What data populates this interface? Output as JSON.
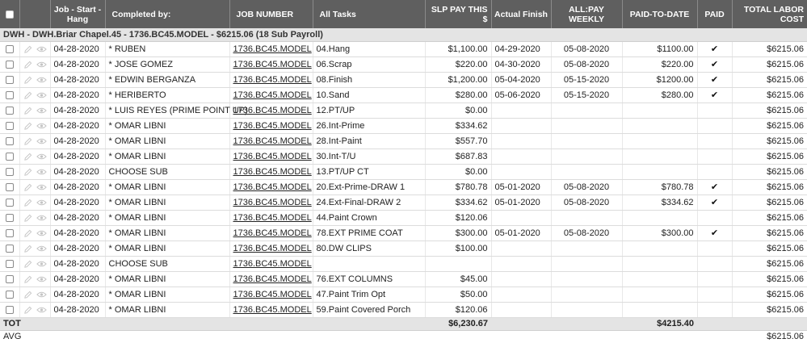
{
  "headers": {
    "job_start": "Job - Start - Hang",
    "completed_by": "Completed by:",
    "job_number": "JOB NUMBER",
    "all_tasks": "All Tasks",
    "slp_pay": "SLP PAY THIS $",
    "actual_finish": "Actual Finish",
    "all_pay_weekly": "ALL:PAY WEEKLY",
    "paid_to_date": "PAID-TO-DATE",
    "paid": "PAID",
    "total_labor_cost": "TOTAL LABOR COST"
  },
  "group": {
    "label": "DWH - DWH.Briar Chapel.45 - 1736.BC45.MODEL - $6215.06  (18 Sub Payroll)"
  },
  "rows": [
    {
      "date": "04-28-2020",
      "sub": "* RUBEN",
      "job": "1736.BC45.MODEL",
      "task": "04.Hang",
      "pay": "$1,100.00",
      "finish": "04-29-2020",
      "weekly": "05-08-2020",
      "ptd": "$1100.00",
      "paid": "✔",
      "total": "$6215.06"
    },
    {
      "date": "04-28-2020",
      "sub": "* JOSE GOMEZ",
      "job": "1736.BC45.MODEL",
      "task": "06.Scrap",
      "pay": "$220.00",
      "finish": "04-30-2020",
      "weekly": "05-08-2020",
      "ptd": "$220.00",
      "paid": "✔",
      "total": "$6215.06"
    },
    {
      "date": "04-28-2020",
      "sub": "* EDWIN BERGANZA",
      "job": "1736.BC45.MODEL",
      "task": "08.Finish",
      "pay": "$1,200.00",
      "finish": "05-04-2020",
      "weekly": "05-15-2020",
      "ptd": "$1200.00",
      "paid": "✔",
      "total": "$6215.06"
    },
    {
      "date": "04-28-2020",
      "sub": "* HERIBERTO",
      "job": "1736.BC45.MODEL",
      "task": "10.Sand",
      "pay": "$280.00",
      "finish": "05-06-2020",
      "weekly": "05-15-2020",
      "ptd": "$280.00",
      "paid": "✔",
      "total": "$6215.06"
    },
    {
      "date": "04-28-2020",
      "sub": "* LUIS REYES (PRIME POINT UP)",
      "job": "1736.BC45.MODEL",
      "task": "12.PT/UP",
      "pay": "$0.00",
      "finish": "",
      "weekly": "",
      "ptd": "",
      "paid": "",
      "total": "$6215.06"
    },
    {
      "date": "04-28-2020",
      "sub": "* OMAR LIBNI",
      "job": "1736.BC45.MODEL",
      "task": "26.Int-Prime",
      "pay": "$334.62",
      "finish": "",
      "weekly": "",
      "ptd": "",
      "paid": "",
      "total": "$6215.06"
    },
    {
      "date": "04-28-2020",
      "sub": "* OMAR LIBNI",
      "job": "1736.BC45.MODEL",
      "task": "28.Int-Paint",
      "pay": "$557.70",
      "finish": "",
      "weekly": "",
      "ptd": "",
      "paid": "",
      "total": "$6215.06"
    },
    {
      "date": "04-28-2020",
      "sub": "* OMAR LIBNI",
      "job": "1736.BC45.MODEL",
      "task": "30.Int-T/U",
      "pay": "$687.83",
      "finish": "",
      "weekly": "",
      "ptd": "",
      "paid": "",
      "total": "$6215.06"
    },
    {
      "date": "04-28-2020",
      "sub": "CHOOSE SUB",
      "job": "1736.BC45.MODEL",
      "task": "13.PT/UP CT",
      "pay": "$0.00",
      "finish": "",
      "weekly": "",
      "ptd": "",
      "paid": "",
      "total": "$6215.06"
    },
    {
      "date": "04-28-2020",
      "sub": "* OMAR LIBNI",
      "job": "1736.BC45.MODEL",
      "task": "20.Ext-Prime-DRAW 1",
      "pay": "$780.78",
      "finish": "05-01-2020",
      "weekly": "05-08-2020",
      "ptd": "$780.78",
      "paid": "✔",
      "total": "$6215.06"
    },
    {
      "date": "04-28-2020",
      "sub": "* OMAR LIBNI",
      "job": "1736.BC45.MODEL",
      "task": "24.Ext-Final-DRAW 2",
      "pay": "$334.62",
      "finish": "05-01-2020",
      "weekly": "05-08-2020",
      "ptd": "$334.62",
      "paid": "✔",
      "total": "$6215.06"
    },
    {
      "date": "04-28-2020",
      "sub": "* OMAR LIBNI",
      "job": "1736.BC45.MODEL",
      "task": "44.Paint Crown",
      "pay": "$120.06",
      "finish": "",
      "weekly": "",
      "ptd": "",
      "paid": "",
      "total": "$6215.06"
    },
    {
      "date": "04-28-2020",
      "sub": "* OMAR LIBNI",
      "job": "1736.BC45.MODEL",
      "task": "78.EXT PRIME COAT",
      "pay": "$300.00",
      "finish": "05-01-2020",
      "weekly": "05-08-2020",
      "ptd": "$300.00",
      "paid": "✔",
      "total": "$6215.06"
    },
    {
      "date": "04-28-2020",
      "sub": "* OMAR LIBNI",
      "job": "1736.BC45.MODEL",
      "task": "80.DW CLIPS",
      "pay": "$100.00",
      "finish": "",
      "weekly": "",
      "ptd": "",
      "paid": "",
      "total": "$6215.06"
    },
    {
      "date": "04-28-2020",
      "sub": "CHOOSE SUB",
      "job": "1736.BC45.MODEL",
      "task": "",
      "pay": "",
      "finish": "",
      "weekly": "",
      "ptd": "",
      "paid": "",
      "total": "$6215.06"
    },
    {
      "date": "04-28-2020",
      "sub": "* OMAR LIBNI",
      "job": "1736.BC45.MODEL",
      "task": "76.EXT COLUMNS",
      "pay": "$45.00",
      "finish": "",
      "weekly": "",
      "ptd": "",
      "paid": "",
      "total": "$6215.06"
    },
    {
      "date": "04-28-2020",
      "sub": "* OMAR LIBNI",
      "job": "1736.BC45.MODEL",
      "task": "47.Paint Trim Opt",
      "pay": "$50.00",
      "finish": "",
      "weekly": "",
      "ptd": "",
      "paid": "",
      "total": "$6215.06"
    },
    {
      "date": "04-28-2020",
      "sub": "* OMAR LIBNI",
      "job": "1736.BC45.MODEL",
      "task": "59.Paint Covered Porch",
      "pay": "$120.06",
      "finish": "",
      "weekly": "",
      "ptd": "",
      "paid": "",
      "total": "$6215.06"
    }
  ],
  "totals": {
    "label": "TOT",
    "pay": "$6,230.67",
    "ptd": "$4215.40"
  },
  "avg": {
    "label": "AVG",
    "total": "$6215.06"
  },
  "icons": {
    "edit": "pencil-icon",
    "view": "eye-icon"
  },
  "colors": {
    "header_bg": "#5f5f5f",
    "group_bg": "#e4e4e4"
  }
}
